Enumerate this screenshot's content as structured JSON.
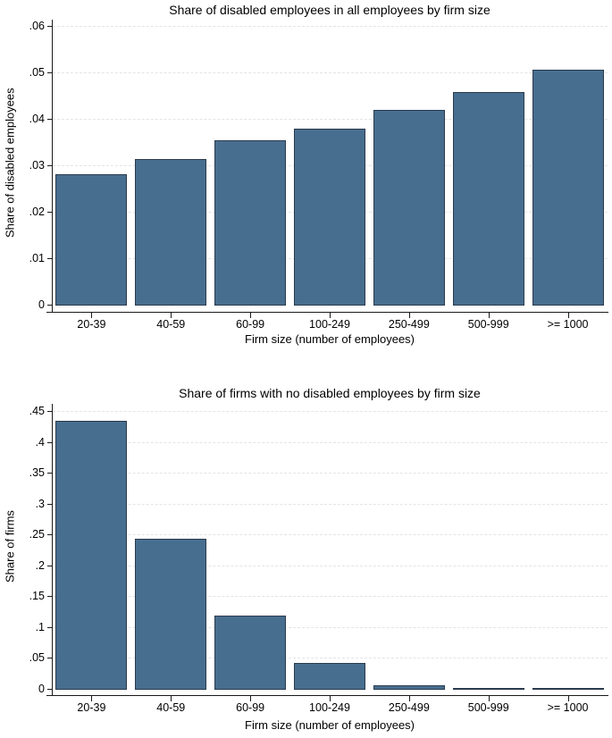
{
  "figure": {
    "background": "#ffffff",
    "bar_color": "#486e8f",
    "bar_border_color": "#2a3b4d",
    "gridline_color": "#e4e4e4",
    "axis_color": "#1a1a1a"
  },
  "chart_data": [
    {
      "type": "bar",
      "title": "Share of disabled employees in all employees by firm size",
      "xlabel": "Firm size (number of employees)",
      "ylabel": "Share of disabled employees",
      "categories": [
        "20-39",
        "40-59",
        "60-99",
        "100-249",
        "250-499",
        "500-999",
        ">= 1000"
      ],
      "values": [
        0.0283,
        0.0316,
        0.0356,
        0.038,
        0.0422,
        0.0459,
        0.0507
      ],
      "ylim": [
        0,
        0.06
      ],
      "yticks": [
        0,
        0.01,
        0.02,
        0.03,
        0.04,
        0.05,
        0.06
      ],
      "ytick_labels": [
        "0",
        ".01",
        ".02",
        ".03",
        ".04",
        ".05",
        ".06"
      ],
      "grid": true,
      "legend": "none",
      "bar_color": "#486e8f"
    },
    {
      "type": "bar",
      "title": "Share of firms with no disabled employees by firm size",
      "xlabel": "Firm size (number of employees)",
      "ylabel": "Share of firms",
      "categories": [
        "20-39",
        "40-59",
        "60-99",
        "100-249",
        "250-499",
        "500-999",
        ">= 1000"
      ],
      "values": [
        0.436,
        0.244,
        0.12,
        0.043,
        0.007,
        0.002,
        0.001
      ],
      "ylim": [
        0,
        0.45
      ],
      "yticks": [
        0,
        0.05,
        0.1,
        0.15,
        0.2,
        0.25,
        0.3,
        0.35,
        0.4,
        0.45
      ],
      "ytick_labels": [
        "0",
        ".05",
        ".1",
        ".15",
        ".2",
        ".25",
        ".3",
        ".35",
        ".4",
        ".45"
      ],
      "grid": true,
      "legend": "none",
      "bar_color": "#486e8f"
    }
  ]
}
